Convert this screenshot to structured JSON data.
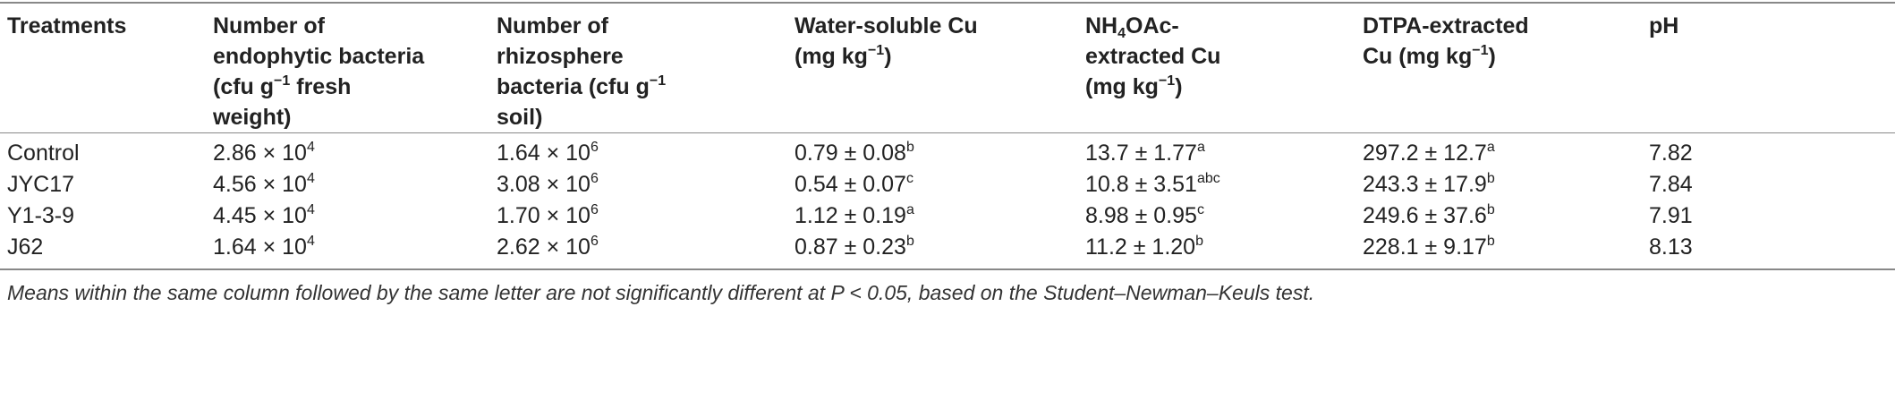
{
  "table": {
    "header": [
      [
        {
          "text": "Treatments"
        }
      ],
      [
        {
          "text": "Number of endophytic bacteria (cfu g"
        },
        {
          "sup": "−1"
        },
        {
          "text": " fresh weight)"
        }
      ],
      [
        {
          "text": "Number of rhizosphere bacteria (cfu g"
        },
        {
          "sup": "−1"
        },
        {
          "text": " soil)"
        }
      ],
      [
        {
          "text": "Water-soluble Cu (mg kg"
        },
        {
          "sup": "−1"
        },
        {
          "text": ")"
        }
      ],
      [
        {
          "text": "NH"
        },
        {
          "sub": "4"
        },
        {
          "text": "OAc-extracted Cu (mg kg"
        },
        {
          "sup": "−1"
        },
        {
          "text": ")"
        }
      ],
      [
        {
          "text": "DTPA-extracted Cu (mg kg"
        },
        {
          "sup": "−1"
        },
        {
          "text": ")"
        }
      ],
      [
        {
          "text": "pH"
        }
      ]
    ],
    "rows": [
      [
        [
          {
            "text": "Control"
          }
        ],
        [
          {
            "text": "2.86 × 10"
          },
          {
            "sup": "4"
          }
        ],
        [
          {
            "text": "1.64 × 10"
          },
          {
            "sup": "6"
          }
        ],
        [
          {
            "text": "0.79 ± 0.08"
          },
          {
            "sup": "b"
          }
        ],
        [
          {
            "text": "13.7 ± 1.77"
          },
          {
            "sup": "a"
          }
        ],
        [
          {
            "text": "297.2 ± 12.7"
          },
          {
            "sup": "a"
          }
        ],
        [
          {
            "text": "7.82"
          }
        ]
      ],
      [
        [
          {
            "text": "JYC17"
          }
        ],
        [
          {
            "text": "4.56 × 10"
          },
          {
            "sup": "4"
          }
        ],
        [
          {
            "text": "3.08 × 10"
          },
          {
            "sup": "6"
          }
        ],
        [
          {
            "text": "0.54 ± 0.07"
          },
          {
            "sup": "c"
          }
        ],
        [
          {
            "text": "10.8 ± 3.51"
          },
          {
            "sup": "abc"
          }
        ],
        [
          {
            "text": "243.3 ± 17.9"
          },
          {
            "sup": "b"
          }
        ],
        [
          {
            "text": "7.84"
          }
        ]
      ],
      [
        [
          {
            "text": "Y1-3-9"
          }
        ],
        [
          {
            "text": "4.45 × 10"
          },
          {
            "sup": "4"
          }
        ],
        [
          {
            "text": "1.70 × 10"
          },
          {
            "sup": "6"
          }
        ],
        [
          {
            "text": "1.12 ± 0.19"
          },
          {
            "sup": "a"
          }
        ],
        [
          {
            "text": "8.98 ± 0.95"
          },
          {
            "sup": "c"
          }
        ],
        [
          {
            "text": "249.6 ± 37.6"
          },
          {
            "sup": "b"
          }
        ],
        [
          {
            "text": "7.91"
          }
        ]
      ],
      [
        [
          {
            "text": "J62"
          }
        ],
        [
          {
            "text": "1.64 × 10"
          },
          {
            "sup": "4"
          }
        ],
        [
          {
            "text": "2.62 × 10"
          },
          {
            "sup": "6"
          }
        ],
        [
          {
            "text": "0.87 ± 0.23"
          },
          {
            "sup": "b"
          }
        ],
        [
          {
            "text": "11.2 ± 1.20"
          },
          {
            "sup": "b"
          }
        ],
        [
          {
            "text": "228.1 ± 9.17"
          },
          {
            "sup": "b"
          }
        ],
        [
          {
            "text": "8.13"
          }
        ]
      ]
    ]
  },
  "footnote": "Means within the same column followed by the same letter are not significantly different at P < 0.05, based on the Student–Newman–Keuls test."
}
